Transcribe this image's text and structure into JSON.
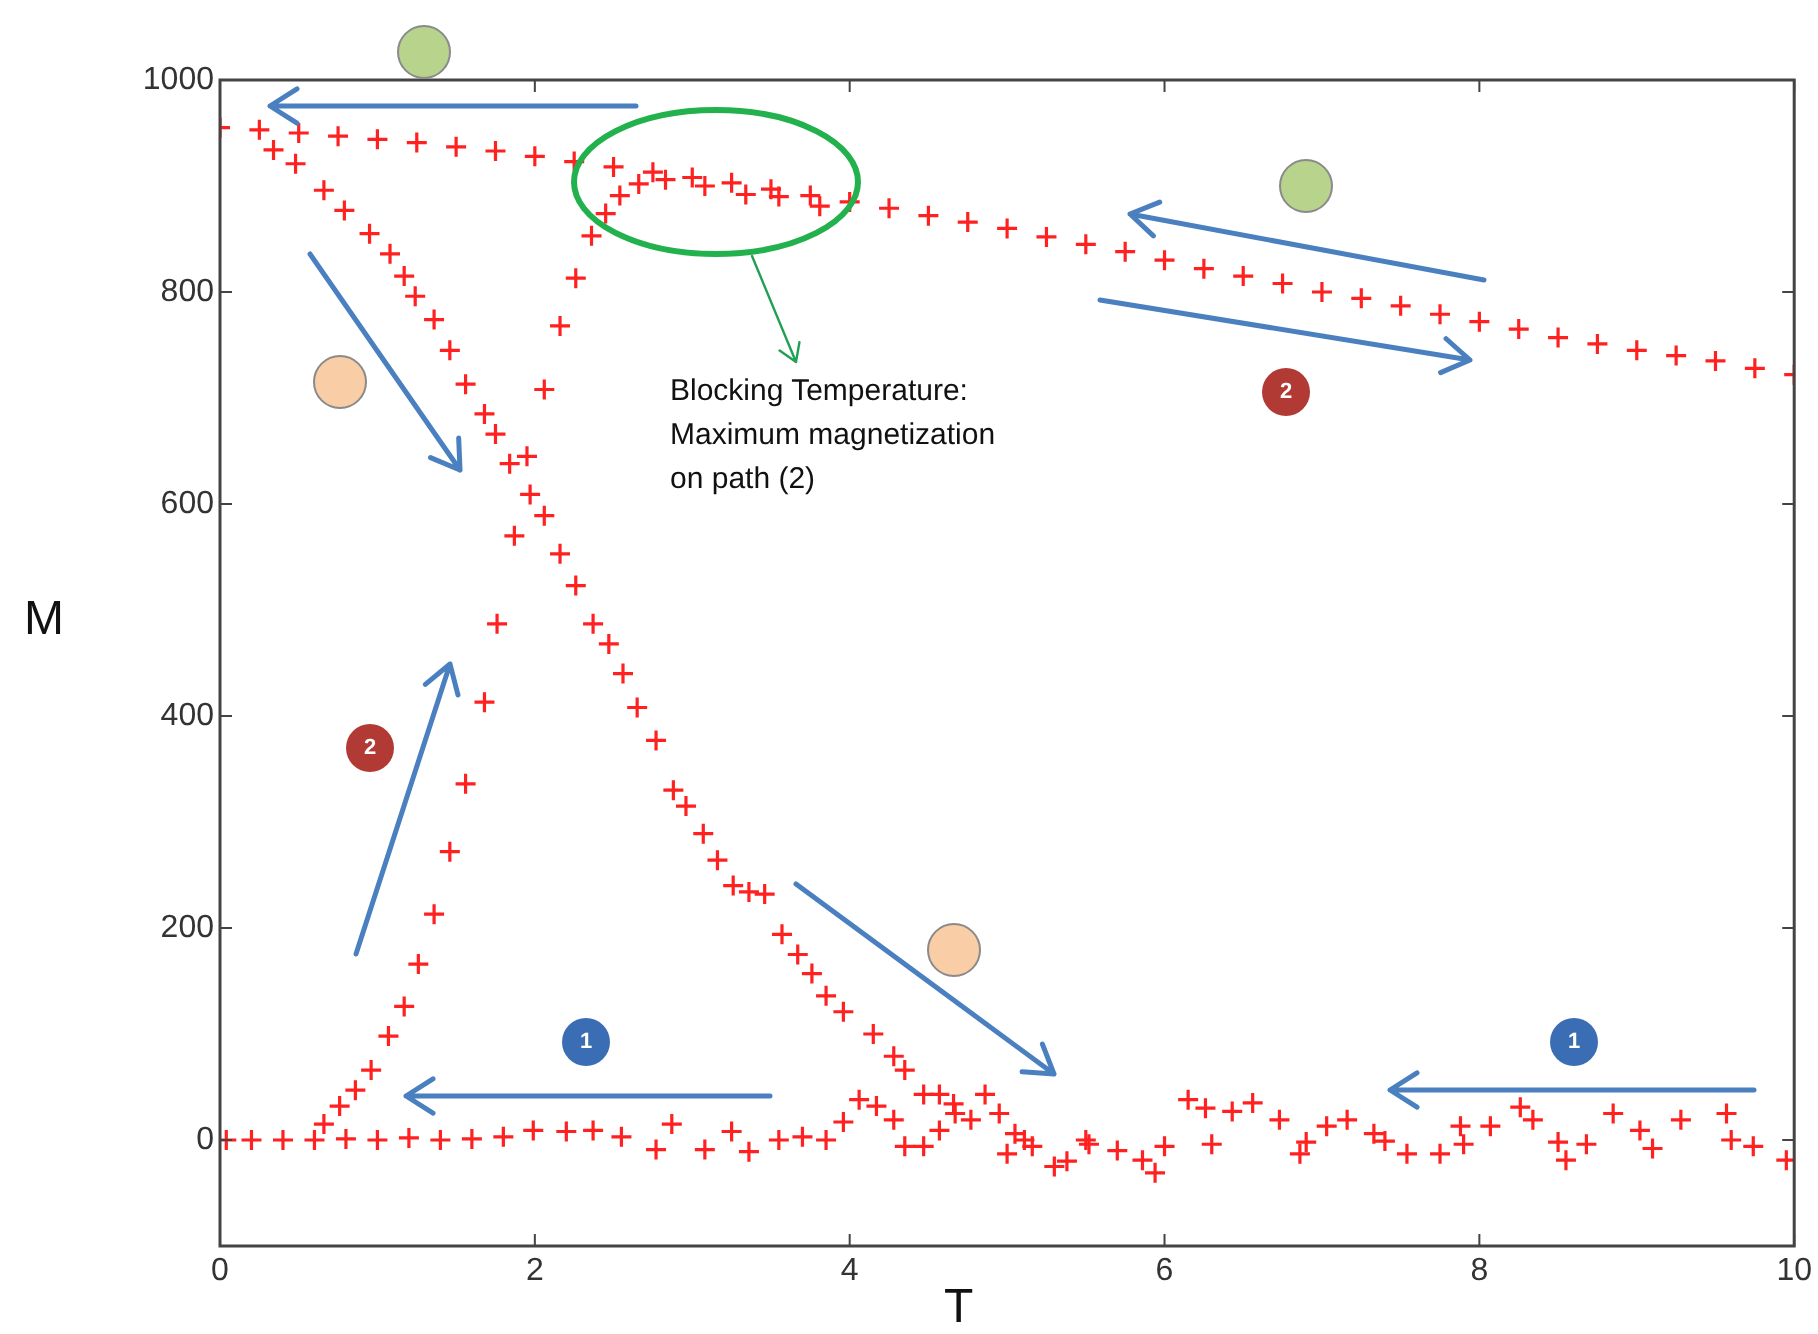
{
  "chart_data": {
    "type": "scatter",
    "xlabel": "T",
    "ylabel": "M",
    "xlim": [
      0,
      10
    ],
    "ylim": [
      -100,
      1000
    ],
    "xticks": [
      0,
      2,
      4,
      6,
      8,
      10
    ],
    "yticks": [
      0,
      200,
      400,
      600,
      800,
      1000
    ],
    "grid": false,
    "legend": false,
    "marker": "cross",
    "annotations": [
      "Blocking Temperature:\nMaximum magnetization\non path (2)",
      "1",
      "1",
      "2",
      "2"
    ],
    "series": [
      {
        "color": "#ff2020",
        "x": [
          0,
          0.25,
          0.5,
          0.75,
          1,
          1.25,
          1.5,
          1.75,
          2,
          2.25,
          2.5,
          2.75,
          3,
          3.25,
          3.5,
          3.75,
          4,
          4.25,
          4.5,
          4.75,
          5,
          5.25,
          5.5,
          5.75,
          6,
          6.25,
          6.5,
          6.75,
          7,
          7.25,
          7.5,
          7.75,
          8,
          8.25,
          8.5,
          8.75,
          9,
          9.25,
          9.5,
          9.75,
          10
        ],
        "values": [
          955,
          953,
          950,
          947,
          944,
          941,
          937,
          933,
          928,
          923,
          918,
          913,
          908,
          903,
          897,
          891,
          885,
          879,
          872,
          866,
          860,
          852,
          845,
          838,
          830,
          822,
          815,
          808,
          800,
          794,
          787,
          779,
          772,
          765,
          757,
          751,
          745,
          740,
          735,
          728,
          722
        ]
      },
      {
        "color": "#ff2020",
        "x": [
          0.34,
          0.48,
          0.66,
          0.79,
          0.95,
          1.08,
          1.17,
          1.24,
          1.36,
          1.46,
          1.56,
          1.68,
          1.75,
          1.84,
          1.95,
          1.97,
          2.06,
          2.16,
          2.26,
          2.37,
          2.47,
          2.56,
          2.65,
          2.77,
          2.88,
          2.96,
          3.07,
          3.16,
          3.26,
          3.36,
          3.46,
          3.57,
          3.67,
          3.76,
          3.85,
          3.96,
          4.15,
          4.28,
          4.35,
          4.47,
          4.57,
          4.66,
          4.86,
          4.95,
          5.05,
          5.16,
          5.38,
          5.5
        ],
        "values": [
          934,
          921,
          896,
          877,
          855,
          836,
          815,
          796,
          774,
          745,
          713,
          685,
          666,
          638,
          645,
          609,
          589,
          553,
          523,
          487,
          468,
          440,
          408,
          377,
          330,
          315,
          289,
          264,
          240,
          234,
          232,
          194,
          175,
          157,
          136,
          121,
          100,
          79,
          66,
          43,
          43,
          34,
          43,
          25,
          6,
          -6,
          -20,
          0
        ]
      },
      {
        "color": "#ff2020",
        "x": [
          0.66,
          0.76,
          0.86,
          0.96,
          1.07,
          1.17,
          1.26,
          1.36,
          1.46,
          1.56,
          1.68,
          1.76,
          1.87,
          2.06,
          2.16,
          2.26,
          2.36,
          2.45,
          2.54,
          2.66,
          2.83,
          3.08,
          3.34,
          3.55,
          3.81
        ],
        "values": [
          15,
          32,
          47,
          66,
          98,
          126,
          166,
          213,
          272,
          336,
          413,
          487,
          570,
          708,
          768,
          813,
          853,
          874,
          891,
          902,
          906,
          900,
          892,
          890,
          881
        ]
      },
      {
        "color": "#ff2020",
        "x": [
          0.04,
          0.2,
          0.4,
          0.6,
          0.8,
          1,
          1.2,
          1.4,
          1.6,
          1.8,
          1.99,
          2.2,
          2.37,
          2.55,
          2.77,
          2.87,
          3.08,
          3.25,
          3.36,
          3.55,
          3.7,
          3.85,
          3.96,
          4.06,
          4.17,
          4.28,
          4.35,
          4.47,
          4.57,
          4.67,
          4.77,
          5,
          5.11,
          5.3,
          5.52,
          5.7,
          5.86,
          5.94,
          6,
          6.15,
          6.26,
          6.3,
          6.43,
          6.56,
          6.73,
          6.86,
          6.9,
          7.03,
          7.16,
          7.33,
          7.4,
          7.54,
          7.75,
          7.88,
          7.9,
          8.07,
          8.26,
          8.34,
          8.5,
          8.55,
          8.68,
          8.85,
          9.02,
          9.1,
          9.28,
          9.57,
          9.6,
          9.74,
          9.95
        ],
        "values": [
          0,
          0,
          0,
          0,
          1,
          0,
          2,
          0,
          1,
          3,
          9,
          8,
          9,
          3,
          -9,
          15,
          -9,
          8,
          -11,
          0,
          3,
          0,
          17,
          38,
          32,
          19,
          -6,
          -6,
          9,
          25,
          19,
          -13,
          0,
          -25,
          -4,
          -10,
          -19,
          -31,
          -6,
          38,
          30,
          -4,
          27,
          35,
          19,
          -13,
          -2,
          13,
          19,
          6,
          -1,
          -13,
          -13,
          13,
          -4,
          13,
          31,
          19,
          -2,
          -19,
          -4,
          25,
          9,
          -8,
          19,
          25,
          0,
          -6,
          -19
        ]
      }
    ]
  }
}
